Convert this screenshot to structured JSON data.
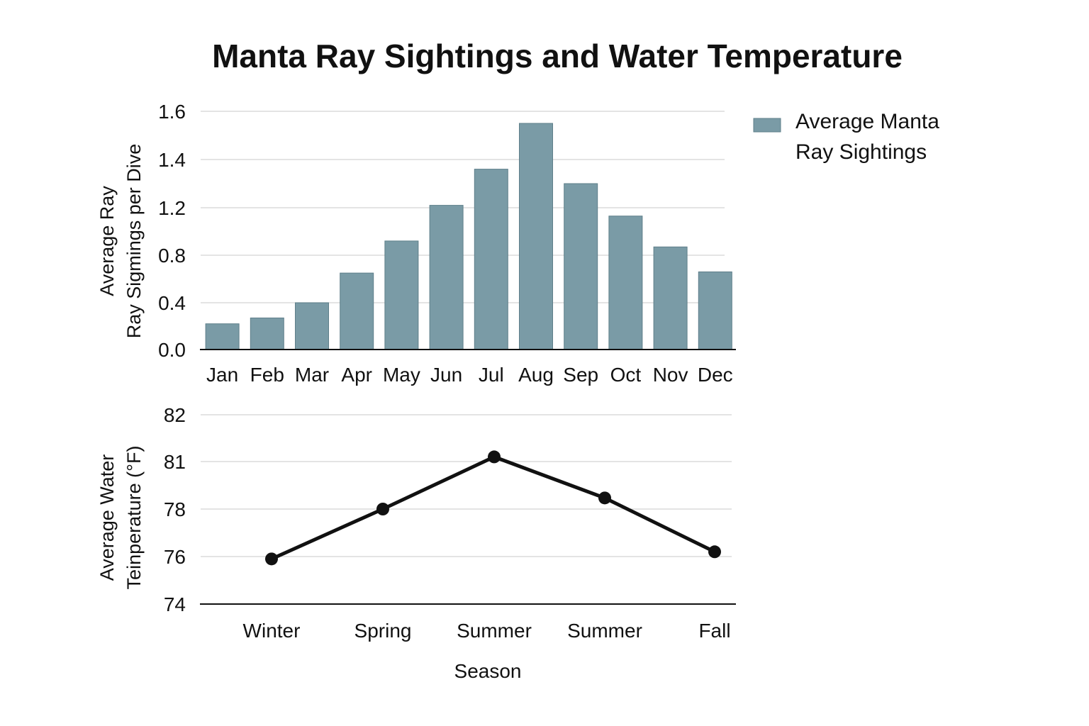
{
  "title": "Manta Ray Sightings and Water Temperature",
  "colors": {
    "bar": "#7a9ba6",
    "bar_stroke": "#5f7f8a",
    "line": "#111111"
  },
  "chart_data": [
    {
      "type": "bar",
      "categories": [
        "Jan",
        "Feb",
        "Mar",
        "Apr",
        "May",
        "Jun",
        "Jul",
        "Aug",
        "Sep",
        "Oct",
        "Nov",
        "Dec"
      ],
      "series": [
        {
          "name": "Average Manta Ray Sightings",
          "values": [
            0.22,
            0.27,
            0.4,
            0.65,
            0.92,
            1.21,
            1.36,
            1.55,
            1.3,
            1.13,
            0.87,
            0.66
          ]
        }
      ],
      "yticks": [
        {
          "label": "0.0",
          "value": 0.0
        },
        {
          "label": "0.4",
          "value": 0.4
        },
        {
          "label": "0.8",
          "value": 0.8
        },
        {
          "label": "1.2",
          "value": 1.2
        },
        {
          "label": "1.4",
          "value": 1.4
        },
        {
          "label": "1.6",
          "value": 1.6
        }
      ],
      "ylabel_lines": [
        "Average Ray",
        "Ray Sigmings per Dive"
      ],
      "xlabel": "",
      "legend": {
        "position": "right",
        "lines": [
          "Average Manta",
          "Ray Sightings"
        ]
      },
      "grid": true
    },
    {
      "type": "line",
      "categories": [
        "Winter",
        "Spring",
        "Summer",
        "Summer",
        "Fall"
      ],
      "series": [
        {
          "values": [
            75.9,
            78.0,
            81.1,
            78.7,
            76.2
          ]
        }
      ],
      "yticks": [
        {
          "label": "74",
          "value": 74
        },
        {
          "label": "76",
          "value": 76
        },
        {
          "label": "78",
          "value": 78
        },
        {
          "label": "81",
          "value": 81
        },
        {
          "label": "82",
          "value": 82
        }
      ],
      "ylabel_lines": [
        "Average Water",
        "Teinperature (°F)"
      ],
      "xlabel": "Season",
      "grid": true
    }
  ]
}
